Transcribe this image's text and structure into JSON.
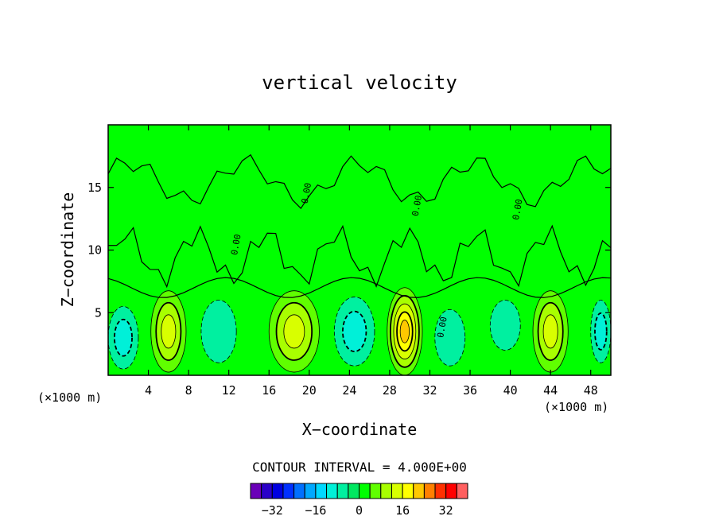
{
  "chart_data": {
    "type": "heatmap",
    "title": "vertical velocity",
    "xlabel": "X−coordinate",
    "ylabel": "Z−coordinate",
    "x_unit_left": "(×1000 m)",
    "x_unit_right": "(×1000 m)",
    "xlim": [
      0,
      50
    ],
    "ylim": [
      0,
      20
    ],
    "xticks": [
      4,
      8,
      12,
      16,
      20,
      24,
      28,
      32,
      36,
      40,
      44,
      48
    ],
    "yticks": [
      5,
      10,
      15
    ],
    "contour_interval_label": "CONTOUR INTERVAL = 4.000E+00",
    "contour_interval": 4.0,
    "contour_label": "0.00",
    "colorbar_ticks": [
      -32,
      -16,
      0,
      16,
      32
    ],
    "colorbar_levels": [
      -40,
      -36,
      -32,
      -28,
      -24,
      -20,
      -16,
      -12,
      -8,
      -4,
      0,
      4,
      8,
      12,
      16,
      20,
      24,
      28,
      32,
      36
    ],
    "colorbar_colors": [
      "#6a00b8",
      "#2a00c8",
      "#0000e0",
      "#0030ff",
      "#0070ff",
      "#00a8ff",
      "#00d8ff",
      "#00f0d8",
      "#00f0a0",
      "#00e860",
      "#00ff00",
      "#60ff00",
      "#a8ff00",
      "#d8ff00",
      "#ffff00",
      "#ffc800",
      "#ff8000",
      "#ff3000",
      "#ff0000",
      "#ff6060"
    ],
    "features": [
      {
        "x": 6,
        "z": 3.5,
        "w": 3.5,
        "h": 6.5,
        "peak": 12
      },
      {
        "x": 18.5,
        "z": 3.5,
        "w": 5,
        "h": 6.5,
        "peak": 12
      },
      {
        "x": 29.5,
        "z": 3.5,
        "w": 3.5,
        "h": 7,
        "peak": 20
      },
      {
        "x": 44,
        "z": 3.5,
        "w": 3.5,
        "h": 6.5,
        "peak": 12
      },
      {
        "x": 1.5,
        "z": 3,
        "w": 3,
        "h": 5,
        "peak": -8
      },
      {
        "x": 11,
        "z": 3.5,
        "w": 3.5,
        "h": 5,
        "peak": -4
      },
      {
        "x": 24.5,
        "z": 3.5,
        "w": 4,
        "h": 5.5,
        "peak": -8
      },
      {
        "x": 34,
        "z": 3,
        "w": 3,
        "h": 4.5,
        "peak": -4
      },
      {
        "x": 39.5,
        "z": 4,
        "w": 3,
        "h": 4,
        "peak": -4
      },
      {
        "x": 49,
        "z": 3.5,
        "w": 2,
        "h": 5,
        "peak": -8
      }
    ]
  }
}
